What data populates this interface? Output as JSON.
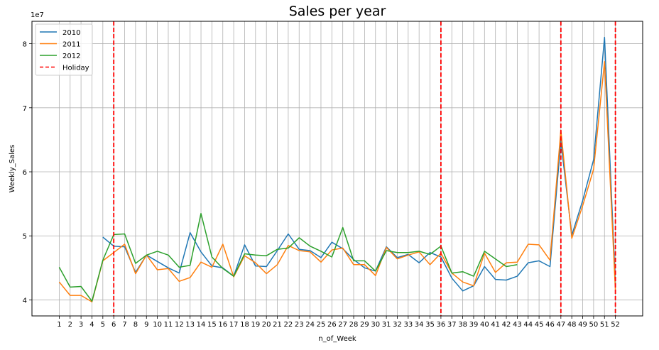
{
  "chart_data": {
    "type": "line",
    "title": "Sales per year",
    "xlabel": "n_of_Week",
    "ylabel": "Weekly_Sales",
    "y_offset_text": "1e7",
    "y_scale": 10000000,
    "xlim": [
      -1.5,
      54.5
    ],
    "ylim": [
      3.75,
      8.35
    ],
    "grid": true,
    "legend_position": "top-left",
    "x": [
      1,
      2,
      3,
      4,
      5,
      6,
      7,
      8,
      9,
      10,
      11,
      12,
      13,
      14,
      15,
      16,
      17,
      18,
      19,
      20,
      21,
      22,
      23,
      24,
      25,
      26,
      27,
      28,
      29,
      30,
      31,
      32,
      33,
      34,
      35,
      36,
      37,
      38,
      39,
      40,
      41,
      42,
      43,
      44,
      45,
      46,
      47,
      48,
      49,
      50,
      51,
      52
    ],
    "x_ticks": [
      1,
      2,
      3,
      4,
      5,
      6,
      7,
      8,
      9,
      10,
      11,
      12,
      13,
      14,
      15,
      16,
      17,
      18,
      19,
      20,
      21,
      22,
      23,
      24,
      25,
      26,
      27,
      28,
      29,
      30,
      31,
      32,
      33,
      34,
      35,
      36,
      37,
      38,
      39,
      40,
      41,
      42,
      43,
      44,
      45,
      46,
      47,
      48,
      49,
      50,
      51,
      52
    ],
    "y_ticks": [
      4,
      5,
      6,
      7,
      8
    ],
    "series": [
      {
        "name": "2010",
        "color": "#1f77b4",
        "values": [
          null,
          null,
          null,
          null,
          4.98,
          4.84,
          4.83,
          4.43,
          4.7,
          4.6,
          4.5,
          4.42,
          5.05,
          4.75,
          4.53,
          4.5,
          4.37,
          4.86,
          4.53,
          4.52,
          4.77,
          5.03,
          4.79,
          4.77,
          4.66,
          4.9,
          4.8,
          4.63,
          4.5,
          4.45,
          4.83,
          4.66,
          4.71,
          4.58,
          4.74,
          4.67,
          4.34,
          4.14,
          4.22,
          4.52,
          4.32,
          4.31,
          4.37,
          4.58,
          4.61,
          4.52,
          6.48,
          5.01,
          5.55,
          6.19,
          8.1,
          4.25
        ]
      },
      {
        "name": "2011",
        "color": "#ff7f0e",
        "values": [
          4.28,
          4.07,
          4.07,
          3.97,
          4.61,
          4.74,
          4.87,
          4.41,
          4.7,
          4.47,
          4.49,
          4.29,
          4.35,
          4.59,
          4.51,
          4.87,
          4.36,
          4.69,
          4.58,
          4.41,
          4.55,
          4.85,
          4.77,
          4.75,
          4.59,
          4.78,
          4.81,
          4.55,
          4.55,
          4.38,
          4.82,
          4.64,
          4.7,
          4.75,
          4.55,
          4.73,
          4.42,
          4.28,
          4.22,
          4.73,
          4.43,
          4.58,
          4.59,
          4.87,
          4.86,
          4.62,
          6.65,
          4.96,
          5.47,
          6.04,
          7.72,
          4.15
        ]
      },
      {
        "name": "2012",
        "color": "#2ca02c",
        "values": [
          4.51,
          4.2,
          4.21,
          3.98,
          4.62,
          5.02,
          5.03,
          4.57,
          4.7,
          4.76,
          4.7,
          4.51,
          4.54,
          5.35,
          4.67,
          4.49,
          4.37,
          4.72,
          4.7,
          4.69,
          4.79,
          4.81,
          4.97,
          4.84,
          4.76,
          4.67,
          5.13,
          4.61,
          4.61,
          4.45,
          4.77,
          4.74,
          4.74,
          4.76,
          4.71,
          4.84,
          4.42,
          4.44,
          4.37,
          4.76,
          4.64,
          4.52,
          4.55,
          null,
          null,
          null,
          null,
          null,
          null,
          null,
          null,
          null
        ]
      }
    ],
    "holidays": {
      "name": "Holiday",
      "color": "#ff0000",
      "weeks": [
        6,
        36,
        47,
        52
      ]
    }
  }
}
